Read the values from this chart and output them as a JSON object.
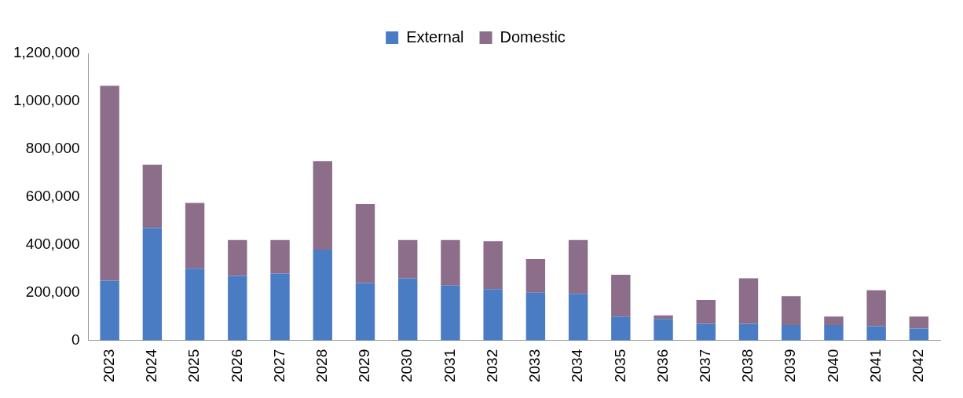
{
  "chart_data": {
    "type": "bar",
    "stacked": true,
    "legend": "top",
    "grid": false,
    "categories": [
      "2023",
      "2024",
      "2025",
      "2026",
      "2027",
      "2028",
      "2029",
      "2030",
      "2031",
      "2032",
      "2033",
      "2034",
      "2035",
      "2036",
      "2037",
      "2038",
      "2039",
      "2040",
      "2041",
      "2042"
    ],
    "series": [
      {
        "name": "External",
        "color": "#4a7cc4",
        "values": [
          250000,
          470000,
          300000,
          270000,
          280000,
          380000,
          240000,
          260000,
          230000,
          215000,
          200000,
          195000,
          100000,
          90000,
          70000,
          70000,
          65000,
          65000,
          60000,
          50000
        ]
      },
      {
        "name": "Domestic",
        "color": "#8c6d8a",
        "values": [
          815000,
          265000,
          275000,
          150000,
          140000,
          370000,
          330000,
          160000,
          190000,
          200000,
          140000,
          225000,
          175000,
          15000,
          100000,
          190000,
          120000,
          35000,
          150000,
          50000
        ]
      }
    ],
    "ylim": [
      0,
      1200000
    ],
    "yticks": [
      {
        "value": 0,
        "label": "0"
      },
      {
        "value": 200000,
        "label": "200,000"
      },
      {
        "value": 400000,
        "label": "400,000"
      },
      {
        "value": 600000,
        "label": "600,000"
      },
      {
        "value": 800000,
        "label": "800,000"
      },
      {
        "value": 1000000,
        "label": "1,000,000"
      },
      {
        "value": 1200000,
        "label": "1,200,000"
      }
    ]
  }
}
